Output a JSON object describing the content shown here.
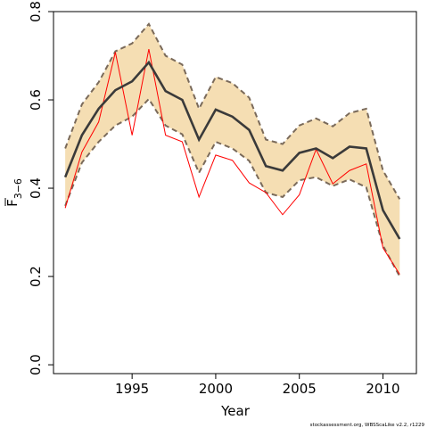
{
  "chart_data": {
    "type": "line",
    "xlabel": "Year",
    "ylabel": "F",
    "ylabel_subscript": "3−6",
    "xlim": [
      1990.3,
      2012
    ],
    "ylim": [
      -0.02,
      0.8
    ],
    "x_ticks": [
      1995,
      2000,
      2005,
      2010
    ],
    "y_ticks": [
      0.0,
      0.2,
      0.4,
      0.6,
      0.8
    ],
    "credit": "stockassessment.org, WBSScaLike  v2.2, r1229",
    "colors": {
      "estimate": "#3a3a3a",
      "band_fill": "#f5deb3",
      "band_edge": "#7a6a5a",
      "observed": "#ff0000"
    },
    "x": [
      1991,
      1992,
      1993,
      1994,
      1995,
      1996,
      1997,
      1998,
      1999,
      2000,
      2001,
      2002,
      2003,
      2004,
      2005,
      2006,
      2007,
      2008,
      2009,
      2010,
      2011
    ],
    "series": [
      {
        "role": "estimate",
        "values": [
          0.425,
          0.52,
          0.58,
          0.622,
          0.642,
          0.685,
          0.62,
          0.6,
          0.51,
          0.578,
          0.562,
          0.532,
          0.45,
          0.44,
          0.48,
          0.49,
          0.468,
          0.494,
          0.49,
          0.35,
          0.285
        ]
      },
      {
        "role": "upper",
        "values": [
          0.49,
          0.59,
          0.64,
          0.71,
          0.728,
          0.772,
          0.7,
          0.68,
          0.58,
          0.652,
          0.638,
          0.605,
          0.51,
          0.5,
          0.542,
          0.558,
          0.54,
          0.57,
          0.58,
          0.44,
          0.375
        ]
      },
      {
        "role": "lower",
        "values": [
          0.36,
          0.458,
          0.505,
          0.542,
          0.562,
          0.602,
          0.542,
          0.522,
          0.435,
          0.505,
          0.49,
          0.462,
          0.39,
          0.38,
          0.418,
          0.425,
          0.405,
          0.42,
          0.402,
          0.27,
          0.2
        ]
      },
      {
        "role": "observed",
        "values": [
          0.355,
          0.482,
          0.55,
          0.708,
          0.52,
          0.715,
          0.52,
          0.505,
          0.38,
          0.475,
          0.463,
          0.412,
          0.39,
          0.34,
          0.385,
          0.488,
          0.41,
          0.44,
          0.455,
          0.265,
          0.205
        ]
      }
    ]
  }
}
